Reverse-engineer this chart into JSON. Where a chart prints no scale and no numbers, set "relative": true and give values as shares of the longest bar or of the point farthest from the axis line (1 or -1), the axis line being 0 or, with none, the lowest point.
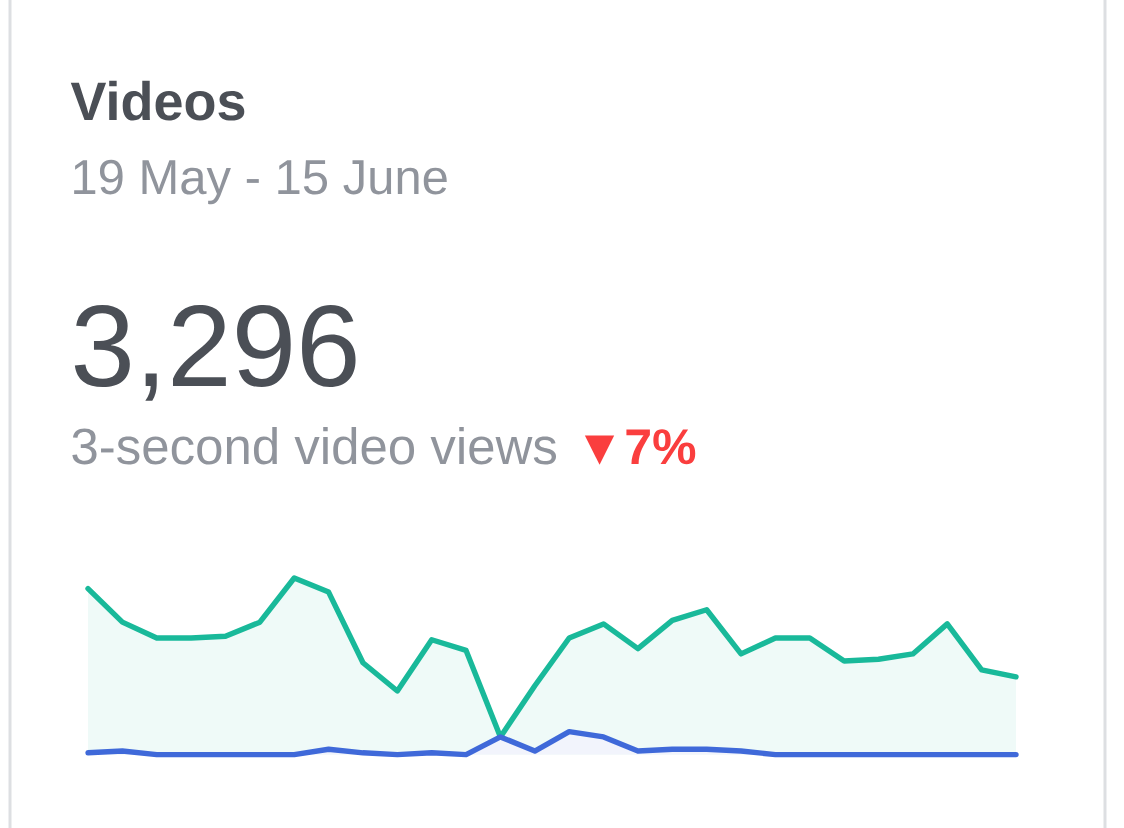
{
  "chart_data": {
    "type": "area",
    "title": "Videos",
    "subtitle": "19 May - 15 June",
    "annotations": [
      "3,296",
      "3-second video views",
      "▼7%"
    ],
    "relative": true,
    "categories": [
      null,
      null,
      null,
      null,
      null,
      null,
      null,
      null,
      null,
      null,
      null,
      null,
      null,
      null,
      null,
      null,
      null,
      null,
      null,
      null,
      null,
      null,
      null,
      null,
      null,
      null,
      null,
      null
    ],
    "series": [
      {
        "color": "#19b99a",
        "values": [
          0.94,
          0.75,
          0.66,
          0.66,
          0.67,
          0.75,
          1,
          0.92,
          0.52,
          0.36,
          0.65,
          0.59,
          0.1,
          0.39,
          0.66,
          0.74,
          0.6,
          0.76,
          0.82,
          0.57,
          0.66,
          0.66,
          0.53,
          0.54,
          0.57,
          0.74,
          0.48,
          0.44
        ]
      },
      {
        "color": "#3f69d9",
        "values": [
          0.01,
          0.02,
          0,
          0,
          0,
          0,
          0,
          0.03,
          0.01,
          0,
          0.01,
          0,
          0.1,
          0.02,
          0.13,
          0.1,
          0.02,
          0.03,
          0.03,
          0.02,
          0,
          0,
          0,
          0,
          0,
          0,
          0,
          0
        ]
      }
    ]
  }
}
